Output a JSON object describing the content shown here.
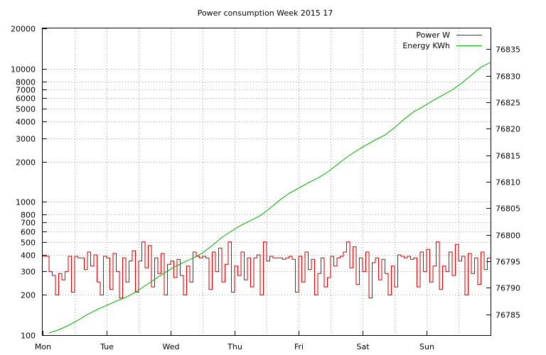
{
  "chart_data": {
    "type": "line",
    "title": "Power consumption Week 2015 17",
    "x_categories": [
      "Mon",
      "Tue",
      "Wed",
      "Thu",
      "Fri",
      "Sat",
      "Sun"
    ],
    "x_range_days": [
      0,
      7
    ],
    "y_left": {
      "scale": "log",
      "lim": [
        100,
        20000
      ],
      "ticks": [
        100,
        200,
        300,
        400,
        500,
        600,
        700,
        800,
        1000,
        2000,
        3000,
        4000,
        5000,
        6000,
        7000,
        8000,
        10000,
        20000
      ]
    },
    "y_right": {
      "scale": "linear",
      "lim": [
        76781.1,
        76838.9
      ],
      "ticks": [
        76785,
        76790,
        76795,
        76800,
        76805,
        76810,
        76815,
        76820,
        76825,
        76830,
        76835
      ]
    },
    "grid": true,
    "legend_position": "top-right",
    "series": [
      {
        "name": "Power W",
        "axis": "left",
        "color": "#cc0000",
        "step": true,
        "x": [
          0.0,
          0.05,
          0.1,
          0.15,
          0.2,
          0.25,
          0.3,
          0.35,
          0.4,
          0.45,
          0.5,
          0.55,
          0.6,
          0.65,
          0.7,
          0.75,
          0.8,
          0.85,
          0.9,
          0.95,
          1.0,
          1.05,
          1.1,
          1.15,
          1.2,
          1.25,
          1.3,
          1.35,
          1.4,
          1.45,
          1.5,
          1.55,
          1.6,
          1.65,
          1.7,
          1.75,
          1.8,
          1.85,
          1.9,
          1.95,
          2.0,
          2.05,
          2.1,
          2.15,
          2.2,
          2.25,
          2.3,
          2.35,
          2.4,
          2.45,
          2.5,
          2.55,
          2.6,
          2.65,
          2.7,
          2.75,
          2.8,
          2.85,
          2.9,
          2.95,
          3.0,
          3.05,
          3.1,
          3.15,
          3.2,
          3.25,
          3.3,
          3.35,
          3.4,
          3.45,
          3.5,
          3.55,
          3.6,
          3.65,
          3.7,
          3.75,
          3.8,
          3.85,
          3.9,
          3.95,
          4.0,
          4.05,
          4.1,
          4.15,
          4.2,
          4.25,
          4.3,
          4.35,
          4.4,
          4.45,
          4.5,
          4.55,
          4.6,
          4.65,
          4.7,
          4.75,
          4.8,
          4.85,
          4.9,
          4.95,
          5.0,
          5.05,
          5.1,
          5.15,
          5.2,
          5.25,
          5.3,
          5.35,
          5.4,
          5.45,
          5.5,
          5.55,
          5.6,
          5.65,
          5.7,
          5.75,
          5.8,
          5.85,
          5.9,
          5.95,
          6.0,
          6.05,
          6.1,
          6.15,
          6.2,
          6.25,
          6.3,
          6.35,
          6.4,
          6.45,
          6.5,
          6.55,
          6.6,
          6.65,
          6.7,
          6.75,
          6.8,
          6.85,
          6.9,
          6.95
        ],
        "values": [
          390,
          390,
          300,
          280,
          200,
          290,
          260,
          300,
          390,
          210,
          390,
          380,
          380,
          310,
          420,
          330,
          400,
          250,
          200,
          390,
          380,
          220,
          410,
          300,
          190,
          380,
          250,
          360,
          430,
          210,
          360,
          500,
          320,
          470,
          230,
          380,
          290,
          410,
          200,
          340,
          360,
          270,
          370,
          280,
          200,
          330,
          250,
          420,
          390,
          380,
          390,
          380,
          220,
          420,
          300,
          450,
          250,
          340,
          500,
          210,
          330,
          280,
          420,
          260,
          380,
          230,
          380,
          400,
          200,
          500,
          360,
          390,
          380,
          380,
          380,
          370,
          380,
          390,
          370,
          210,
          390,
          250,
          420,
          310,
          370,
          200,
          290,
          380,
          230,
          270,
          390,
          330,
          380,
          390,
          420,
          500,
          320,
          460,
          240,
          380,
          300,
          420,
          190,
          350,
          380,
          260,
          370,
          290,
          200,
          330,
          230,
          400,
          390,
          380,
          390,
          370,
          380,
          230,
          420,
          300,
          440,
          250,
          330,
          500,
          220,
          330,
          300,
          420,
          280,
          480,
          360,
          390,
          200,
          410,
          290,
          380,
          240,
          420,
          310,
          380
        ]
      },
      {
        "name": "Energy KWh",
        "axis": "right",
        "color": "#00aa00",
        "x": [
          0.1,
          0.25,
          0.4,
          0.55,
          0.7,
          0.85,
          1.0,
          1.15,
          1.3,
          1.45,
          1.6,
          1.75,
          1.9,
          2.05,
          2.2,
          2.35,
          2.5,
          2.65,
          2.8,
          2.95,
          3.1,
          3.25,
          3.4,
          3.55,
          3.7,
          3.85,
          4.0,
          4.15,
          4.3,
          4.45,
          4.6,
          4.75,
          4.9,
          5.05,
          5.2,
          5.35,
          5.5,
          5.65,
          5.8,
          5.95,
          6.1,
          6.25,
          6.4,
          6.55,
          6.7,
          6.85,
          7.0
        ],
        "values": [
          76781.5,
          76782.1,
          76782.9,
          76783.9,
          76785.0,
          76785.9,
          76786.7,
          76787.5,
          76788.2,
          76789.2,
          76790.4,
          76791.6,
          76792.8,
          76793.9,
          76794.8,
          76795.6,
          76796.6,
          76798.0,
          76799.5,
          76800.7,
          76801.8,
          76802.7,
          76803.6,
          76805.0,
          76806.5,
          76807.8,
          76808.8,
          76809.8,
          76810.7,
          76811.8,
          76813.2,
          76814.6,
          76815.8,
          76816.9,
          76817.9,
          76818.8,
          76820.2,
          76821.8,
          76823.2,
          76824.2,
          76825.3,
          76826.3,
          76827.3,
          76828.6,
          76830.1,
          76831.6,
          76832.5
        ]
      }
    ]
  }
}
